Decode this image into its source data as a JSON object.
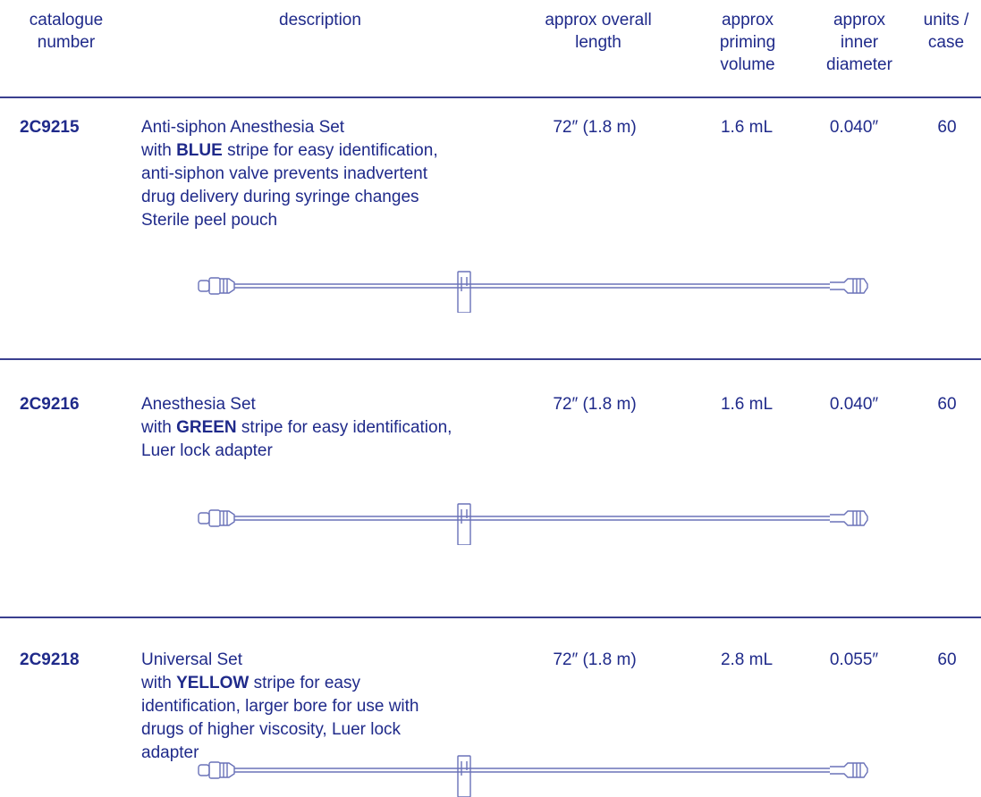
{
  "header": {
    "catalogue": "catalogue\nnumber",
    "description": "description",
    "length": "approx overall\nlength",
    "priming": "approx\npriming\nvolume",
    "inner_diameter": "approx\ninner\ndiameter",
    "units": "units /\ncase"
  },
  "rows": [
    {
      "catalogue": "2C9215",
      "title": "Anti-siphon Anesthesia Set",
      "with_prefix": "with ",
      "color_word": "BLUE",
      "after_color": " stripe for easy identification,",
      "extra_lines": "anti-siphon valve prevents inadvertent\ndrug delivery during syringe changes\nSterile peel pouch",
      "length": "72″ (1.8 m)",
      "priming": "1.6 mL",
      "inner_diameter": "0.040″",
      "units": "60"
    },
    {
      "catalogue": "2C9216",
      "title": "Anesthesia Set",
      "with_prefix": "with ",
      "color_word": "GREEN",
      "after_color": " stripe for easy identification,",
      "extra_lines": "Luer lock adapter",
      "length": "72″ (1.8 m)",
      "priming": "1.6 mL",
      "inner_diameter": "0.040″",
      "units": "60"
    },
    {
      "catalogue": "2C9218",
      "title": "Universal Set",
      "with_prefix": "with ",
      "color_word": "YELLOW",
      "after_color": " stripe for easy",
      "extra_lines": "identification, larger bore for use with\ndrugs of higher viscosity, Luer lock\nadapter",
      "length": "72″ (1.8 m)",
      "priming": "2.8 mL",
      "inner_diameter": "0.055″",
      "units": "60"
    }
  ],
  "colors": {
    "text": "#1f2a8a",
    "rule": "#3a3f8f",
    "tube_line": "#6a72b8"
  },
  "icons": {
    "tube": "extension-set-tubing-illustration"
  }
}
